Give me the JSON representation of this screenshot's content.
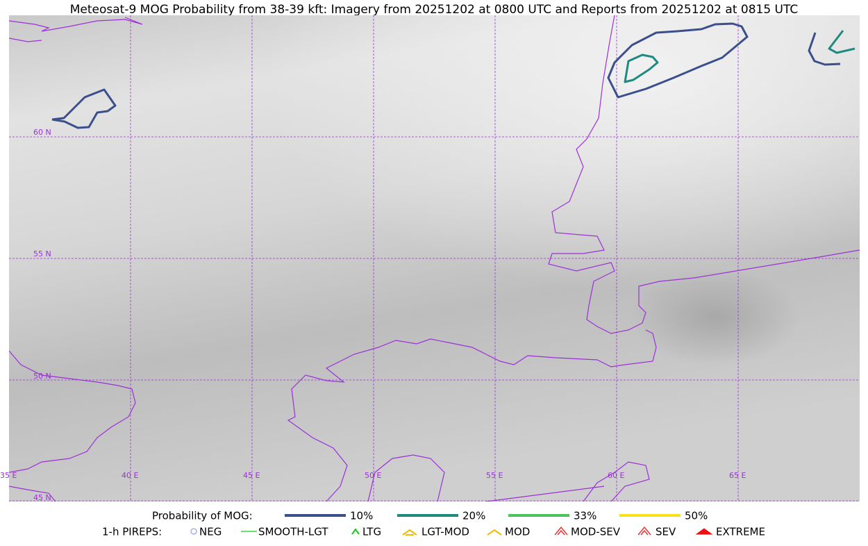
{
  "title": "Meteosat-9 MOG Probability from 38-39 kft: Imagery from 20251202 at 0800 UTC and Reports from 20251202 at 0815 UTC",
  "map": {
    "lat_labels": [
      "60 N",
      "55 N",
      "50 N",
      "45 N"
    ],
    "lon_labels": [
      "35 E",
      "40 E",
      "45 E",
      "50 E",
      "55 E",
      "60 E",
      "65 E"
    ]
  },
  "legend": {
    "probability": {
      "label": "Probability of MOG:",
      "items": [
        {
          "label": "10%",
          "color": "#3a4f8c"
        },
        {
          "label": "20%",
          "color": "#1f8a80"
        },
        {
          "label": "33%",
          "color": "#4cc45a"
        },
        {
          "label": "50%",
          "color": "#f7e11a"
        }
      ]
    },
    "pireps": {
      "label": "1-h PIREPS:",
      "items": [
        {
          "label": "NEG",
          "color": "#aab0ee"
        },
        {
          "label": "SMOOTH-LGT",
          "color": "#33dd33"
        },
        {
          "label": "LTG",
          "color": "#11cc11"
        },
        {
          "label": "LGT-MOD",
          "color": "#f5b800"
        },
        {
          "label": "MOD",
          "color": "#f5b800"
        },
        {
          "label": "MOD-SEV",
          "color": "#ee3333"
        },
        {
          "label": "SEV",
          "color": "#ee3333"
        },
        {
          "label": "EXTREME",
          "color": "#ee1111"
        }
      ]
    }
  }
}
